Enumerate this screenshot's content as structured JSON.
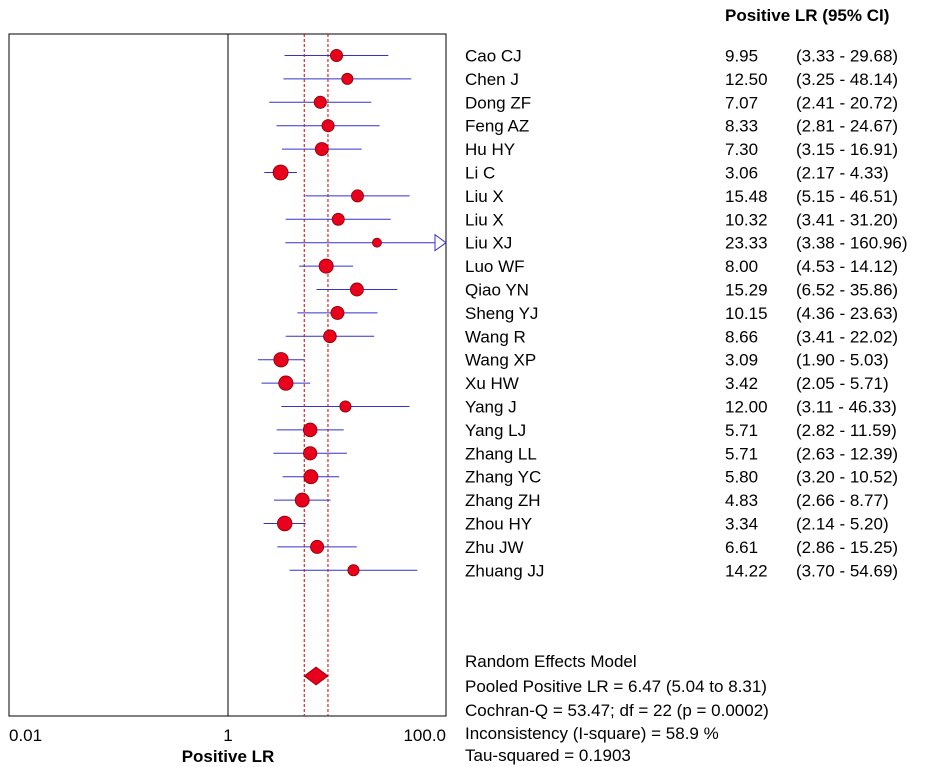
{
  "chart_data": {
    "type": "forest",
    "column_header": "Positive LR (95% CI)",
    "xlabel": "Positive LR",
    "x_ticks": [
      "0.01",
      "1",
      "100.0"
    ],
    "x_scale": "log",
    "xlim": [
      0.01,
      100
    ],
    "studies": [
      {
        "name": "Cao CJ",
        "value": "9.95",
        "ci": "(3.33 - 29.68)",
        "est": 9.95,
        "lo": 3.33,
        "hi": 29.68
      },
      {
        "name": "Chen J",
        "value": "12.50",
        "ci": "(3.25 - 48.14)",
        "est": 12.5,
        "lo": 3.25,
        "hi": 48.14
      },
      {
        "name": "Dong ZF",
        "value": "7.07",
        "ci": "(2.41 - 20.72)",
        "est": 7.07,
        "lo": 2.41,
        "hi": 20.72
      },
      {
        "name": "Feng AZ",
        "value": "8.33",
        "ci": "(2.81 - 24.67)",
        "est": 8.33,
        "lo": 2.81,
        "hi": 24.67
      },
      {
        "name": "Hu HY",
        "value": "7.30",
        "ci": "(3.15 - 16.91)",
        "est": 7.3,
        "lo": 3.15,
        "hi": 16.91
      },
      {
        "name": "Li C",
        "value": "3.06",
        "ci": "(2.17 - 4.33)",
        "est": 3.06,
        "lo": 2.17,
        "hi": 4.33
      },
      {
        "name": "Liu X",
        "value": "15.48",
        "ci": "(5.15 - 46.51)",
        "est": 15.48,
        "lo": 5.15,
        "hi": 46.51
      },
      {
        "name": "Liu X",
        "value": "10.32",
        "ci": "(3.41 - 31.20)",
        "est": 10.32,
        "lo": 3.41,
        "hi": 31.2
      },
      {
        "name": "Liu XJ",
        "value": "23.33",
        "ci": "(3.38 - 160.96)",
        "est": 23.33,
        "lo": 3.38,
        "hi": 160.96
      },
      {
        "name": "Luo WF",
        "value": "8.00",
        "ci": "(4.53 - 14.12)",
        "est": 8.0,
        "lo": 4.53,
        "hi": 14.12
      },
      {
        "name": "Qiao YN",
        "value": "15.29",
        "ci": "(6.52 - 35.86)",
        "est": 15.29,
        "lo": 6.52,
        "hi": 35.86
      },
      {
        "name": "Sheng YJ",
        "value": "10.15",
        "ci": "(4.36 - 23.63)",
        "est": 10.15,
        "lo": 4.36,
        "hi": 23.63
      },
      {
        "name": "Wang R",
        "value": "8.66",
        "ci": "(3.41 - 22.02)",
        "est": 8.66,
        "lo": 3.41,
        "hi": 22.02
      },
      {
        "name": "Wang XP",
        "value": "3.09",
        "ci": "(1.90 - 5.03)",
        "est": 3.09,
        "lo": 1.9,
        "hi": 5.03
      },
      {
        "name": "Xu HW",
        "value": "3.42",
        "ci": "(2.05 - 5.71)",
        "est": 3.42,
        "lo": 2.05,
        "hi": 5.71
      },
      {
        "name": "Yang J",
        "value": "12.00",
        "ci": "(3.11 - 46.33)",
        "est": 12.0,
        "lo": 3.11,
        "hi": 46.33
      },
      {
        "name": "Yang LJ",
        "value": "5.71",
        "ci": "(2.82 - 11.59)",
        "est": 5.71,
        "lo": 2.82,
        "hi": 11.59
      },
      {
        "name": "Zhang LL",
        "value": "5.71",
        "ci": "(2.63 - 12.39)",
        "est": 5.71,
        "lo": 2.63,
        "hi": 12.39
      },
      {
        "name": "Zhang YC",
        "value": "5.80",
        "ci": "(3.20 - 10.52)",
        "est": 5.8,
        "lo": 3.2,
        "hi": 10.52
      },
      {
        "name": "Zhang ZH",
        "value": "4.83",
        "ci": "(2.66 - 8.77)",
        "est": 4.83,
        "lo": 2.66,
        "hi": 8.77
      },
      {
        "name": "Zhou HY",
        "value": "3.34",
        "ci": "(2.14 - 5.20)",
        "est": 3.34,
        "lo": 2.14,
        "hi": 5.2
      },
      {
        "name": "Zhu JW",
        "value": "6.61",
        "ci": "(2.86 - 15.25)",
        "est": 6.61,
        "lo": 2.86,
        "hi": 15.25
      },
      {
        "name": "Zhuang JJ",
        "value": "14.22",
        "ci": "(3.70 - 54.69)",
        "est": 14.22,
        "lo": 3.7,
        "hi": 54.69
      }
    ],
    "pooled": {
      "est": 6.47,
      "lo": 5.04,
      "hi": 8.31
    },
    "summary_lines": [
      "Random Effects Model",
      "Pooled Positive LR = 6.47 (5.04 to 8.31)",
      "Cochran-Q = 53.47; df =  22 (p = 0.0002)",
      "Inconsistency (I-square) = 58.9 %",
      "Tau-squared = 0.1903"
    ],
    "colors": {
      "marker": "#e8001c",
      "ci_line": "#3333cc",
      "ref_line": "#cc0000",
      "frame": "#000000"
    }
  }
}
